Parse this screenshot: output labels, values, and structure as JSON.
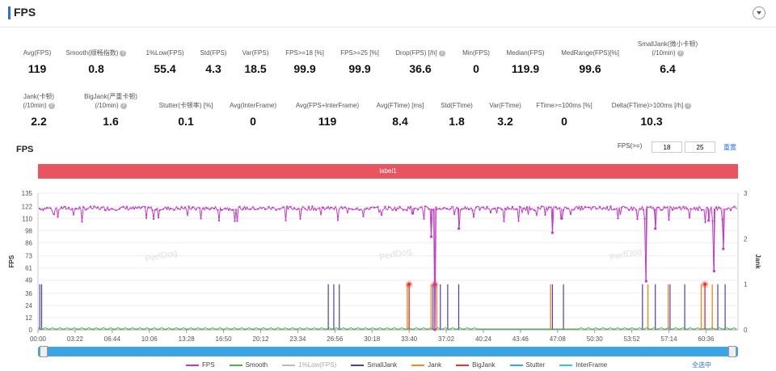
{
  "section_title": "FPS",
  "stats_row1": [
    {
      "label": "Avg(FPS)",
      "value": "119",
      "help": false
    },
    {
      "label": "Smooth(顺畅指数)",
      "value": "0.8",
      "help": true
    },
    {
      "label": "1%Low(FPS)",
      "value": "55.4",
      "help": false
    },
    {
      "label": "Std(FPS)",
      "value": "4.3",
      "help": false
    },
    {
      "label": "Var(FPS)",
      "value": "18.5",
      "help": false
    },
    {
      "label": "FPS>=18 [%]",
      "value": "99.9",
      "help": false
    },
    {
      "label": "FPS>=25 [%]",
      "value": "99.9",
      "help": false
    },
    {
      "label": "Drop(FPS) [/h]",
      "value": "36.6",
      "help": true
    },
    {
      "label": "Min(FPS)",
      "value": "0",
      "help": false
    },
    {
      "label": "Median(FPS)",
      "value": "119.9",
      "help": false
    },
    {
      "label": "MedRange(FPS)[%]",
      "value": "99.6",
      "help": false
    },
    {
      "label": "SmallJank(微小卡顿)",
      "label2": "(/10min)",
      "value": "6.4",
      "help": true
    }
  ],
  "stats_row2": [
    {
      "label": "Jank(卡顿)",
      "label2": "(/10min)",
      "value": "2.2",
      "help": true
    },
    {
      "label": "BigJank(严重卡顿)",
      "label2": "(/10min)",
      "value": "1.6",
      "help": true
    },
    {
      "label": "Stutter(卡顿率) [%]",
      "value": "0.1",
      "help": false
    },
    {
      "label": "Avg(InterFrame)",
      "value": "0",
      "help": false
    },
    {
      "label": "Avg(FPS+InterFrame)",
      "value": "119",
      "help": false
    },
    {
      "label": "Avg(FTime) [ms]",
      "value": "8.4",
      "help": false
    },
    {
      "label": "Std(FTime)",
      "value": "1.8",
      "help": false
    },
    {
      "label": "Var(FTime)",
      "value": "3.2",
      "help": false
    },
    {
      "label": "FTime>=100ms [%]",
      "value": "0",
      "help": false
    },
    {
      "label": "Delta(FTime)>100ms [/h]",
      "value": "10.3",
      "help": true
    }
  ],
  "chart_header": {
    "title": "FPS",
    "fps_threshold_label": "FPS(>=)",
    "threshold_1": "18",
    "threshold_2": "25",
    "reset_label": "重置"
  },
  "label_band": "label1",
  "watermark": "PerfDog",
  "chart_data": {
    "type": "line",
    "ylabel": "FPS",
    "y2label": "Jank",
    "y_ticks": [
      0,
      12,
      24,
      36,
      49,
      61,
      73,
      86,
      98,
      110,
      122,
      135
    ],
    "y2_ticks": [
      0,
      1,
      2,
      3
    ],
    "x_ticks": [
      "00:00",
      "03:22",
      "06:44",
      "10:06",
      "13:28",
      "16:50",
      "20:12",
      "23:34",
      "26:56",
      "30:18",
      "33:40",
      "37:02",
      "40:24",
      "43:46",
      "47:08",
      "50:30",
      "53:52",
      "57:14",
      "60:36"
    ],
    "fps_baseline": 120,
    "fps_drops": [
      {
        "t": "34:00",
        "fps": 115
      },
      {
        "t": "35:40",
        "fps": 92
      },
      {
        "t": "36:00",
        "fps": 0
      },
      {
        "t": "38:10",
        "fps": 100
      },
      {
        "t": "46:40",
        "fps": 96
      },
      {
        "t": "47:30",
        "fps": 110
      },
      {
        "t": "55:10",
        "fps": 48
      },
      {
        "t": "56:00",
        "fps": 100
      },
      {
        "t": "60:50",
        "fps": 108
      },
      {
        "t": "61:20",
        "fps": 58
      },
      {
        "t": "62:10",
        "fps": 80
      }
    ],
    "jank_markers": {
      "small_jank": [
        "00:10",
        "00:20",
        "26:20",
        "26:50",
        "27:20",
        "35:50",
        "36:30",
        "37:10",
        "38:10",
        "46:40",
        "47:40",
        "54:50",
        "56:00",
        "57:20",
        "58:40",
        "61:40",
        "62:20"
      ],
      "jank": [
        "33:30",
        "35:40",
        "36:10",
        "46:30",
        "55:20",
        "57:10",
        "60:10",
        "61:10"
      ],
      "big_jank": [
        "33:40",
        "36:00",
        "60:30"
      ]
    },
    "legend": [
      "FPS",
      "Smooth",
      "1%Low(FPS)",
      "SmallJank",
      "Jank",
      "BigJank",
      "Stutter",
      "InterFrame"
    ],
    "colors": {
      "FPS": "#c23bc4",
      "Smooth": "#4caf50",
      "1%Low(FPS)": "#bbbbbb",
      "SmallJank": "#4a3fa8",
      "Jank": "#f08a2c",
      "BigJank": "#e53935",
      "Stutter": "#3ba4e6",
      "InterFrame": "#39c8c8"
    }
  },
  "select_all_label": "全选中"
}
